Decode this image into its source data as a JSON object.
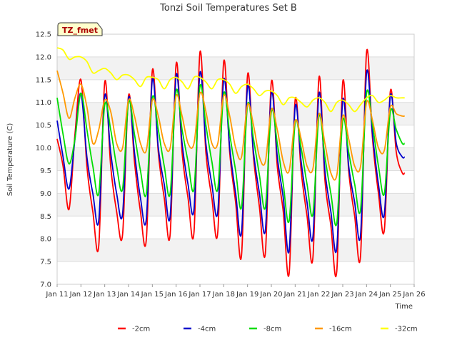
{
  "chart_data": {
    "type": "line",
    "title": "Tonzi Soil Temperatures Set B",
    "xlabel": "Time",
    "ylabel": "Soil Temperature (C)",
    "ylim": [
      7.0,
      12.5
    ],
    "xlim": [
      11,
      26
    ],
    "x_ticks": [
      {
        "pos": 11,
        "label": "Jan 11"
      },
      {
        "pos": 12,
        "label": "Jan 12"
      },
      {
        "pos": 13,
        "label": "Jan 13"
      },
      {
        "pos": 14,
        "label": "Jan 14"
      },
      {
        "pos": 15,
        "label": "Jan 15"
      },
      {
        "pos": 16,
        "label": "Jan 16"
      },
      {
        "pos": 17,
        "label": "Jan 17"
      },
      {
        "pos": 18,
        "label": "Jan 18"
      },
      {
        "pos": 19,
        "label": "Jan 19"
      },
      {
        "pos": 20,
        "label": "Jan 20"
      },
      {
        "pos": 21,
        "label": "Jan 21"
      },
      {
        "pos": 22,
        "label": "Jan 22"
      },
      {
        "pos": 23,
        "label": "Jan 23"
      },
      {
        "pos": 24,
        "label": "Jan 24"
      },
      {
        "pos": 25,
        "label": "Jan 25"
      },
      {
        "pos": 26,
        "label": "Jan 26"
      }
    ],
    "y_ticks": [
      "7.0",
      "7.5",
      "8.0",
      "8.5",
      "9.0",
      "9.5",
      "10.0",
      "10.5",
      "11.0",
      "11.5",
      "12.0",
      "12.5"
    ],
    "grid": true,
    "legend_position": "bottom",
    "annotation": "TZ_fmet",
    "series": [
      {
        "name": "-2cm",
        "color": "#ff0000",
        "x": [
          11.0,
          11.25,
          11.5,
          11.75,
          12.0,
          12.25,
          12.5,
          12.75,
          13.0,
          13.25,
          13.5,
          13.75,
          14.0,
          14.25,
          14.5,
          14.75,
          15.0,
          15.25,
          15.5,
          15.75,
          16.0,
          16.25,
          16.5,
          16.75,
          17.0,
          17.25,
          17.5,
          17.75,
          18.0,
          18.25,
          18.5,
          18.75,
          19.0,
          19.25,
          19.5,
          19.75,
          20.0,
          20.25,
          20.5,
          20.75,
          21.0,
          21.25,
          21.5,
          21.75,
          22.0,
          22.25,
          22.5,
          22.75,
          23.0,
          23.25,
          23.5,
          23.75,
          24.0,
          24.25,
          24.5,
          24.75,
          25.0,
          25.25,
          25.5,
          25.6
        ],
        "y": [
          10.2,
          9.6,
          8.65,
          10.3,
          11.5,
          9.6,
          8.6,
          7.85,
          11.45,
          9.6,
          8.6,
          8.1,
          11.15,
          9.7,
          8.6,
          8.0,
          11.7,
          9.9,
          8.9,
          8.1,
          11.85,
          9.9,
          8.9,
          8.15,
          12.1,
          9.9,
          8.9,
          8.15,
          11.9,
          9.9,
          8.8,
          7.65,
          11.6,
          9.8,
          8.7,
          7.7,
          11.45,
          9.6,
          8.6,
          7.25,
          11.05,
          9.5,
          8.5,
          7.6,
          11.55,
          9.3,
          8.3,
          7.3,
          11.45,
          9.5,
          8.5,
          7.65,
          12.1,
          10.2,
          9.0,
          8.2,
          11.25,
          9.9,
          9.45,
          9.45
        ]
      },
      {
        "name": "-4cm",
        "color": "#0000cc",
        "x": [
          11.0,
          11.25,
          11.5,
          11.75,
          12.0,
          12.25,
          12.5,
          12.75,
          13.0,
          13.25,
          13.5,
          13.75,
          14.0,
          14.25,
          14.5,
          14.75,
          15.0,
          15.25,
          15.5,
          15.75,
          16.0,
          16.25,
          16.5,
          16.75,
          17.0,
          17.25,
          17.5,
          17.75,
          18.0,
          18.25,
          18.5,
          18.75,
          19.0,
          19.25,
          19.5,
          19.75,
          20.0,
          20.25,
          20.5,
          20.75,
          21.0,
          21.25,
          21.5,
          21.75,
          22.0,
          22.25,
          22.5,
          22.75,
          23.0,
          23.25,
          23.5,
          23.75,
          24.0,
          24.25,
          24.5,
          24.75,
          25.0,
          25.25,
          25.5,
          25.6
        ],
        "y": [
          10.6,
          9.8,
          9.1,
          10.2,
          11.2,
          9.8,
          9.0,
          8.4,
          11.15,
          9.9,
          9.0,
          8.55,
          11.1,
          9.9,
          8.9,
          8.45,
          11.5,
          10.0,
          9.2,
          8.5,
          11.6,
          10.1,
          9.2,
          8.65,
          11.65,
          10.1,
          9.2,
          8.6,
          11.5,
          10.0,
          9.0,
          8.15,
          11.35,
          9.9,
          9.0,
          8.2,
          11.2,
          9.8,
          8.9,
          7.75,
          10.9,
          9.7,
          8.8,
          8.05,
          11.2,
          9.5,
          8.6,
          7.8,
          11.05,
          9.6,
          8.8,
          8.1,
          11.65,
          10.3,
          9.2,
          8.55,
          11.15,
          10.1,
          9.8,
          9.8
        ]
      },
      {
        "name": "-8cm",
        "color": "#00dd00",
        "x": [
          11.0,
          11.25,
          11.5,
          11.75,
          12.0,
          12.25,
          12.5,
          12.75,
          13.0,
          13.25,
          13.5,
          13.75,
          14.0,
          14.25,
          14.5,
          14.75,
          15.0,
          15.25,
          15.5,
          15.75,
          16.0,
          16.25,
          16.5,
          16.75,
          17.0,
          17.25,
          17.5,
          17.75,
          18.0,
          18.25,
          18.5,
          18.75,
          19.0,
          19.25,
          19.5,
          19.75,
          20.0,
          20.25,
          20.5,
          20.75,
          21.0,
          21.25,
          21.5,
          21.75,
          22.0,
          22.25,
          22.5,
          22.75,
          23.0,
          23.25,
          23.5,
          23.75,
          24.0,
          24.25,
          24.5,
          24.75,
          25.0,
          25.25,
          25.5,
          25.6
        ],
        "y": [
          11.1,
          10.3,
          9.65,
          10.2,
          11.2,
          10.4,
          9.6,
          9.0,
          10.95,
          10.4,
          9.6,
          9.1,
          11.0,
          10.3,
          9.5,
          9.0,
          11.1,
          10.4,
          9.6,
          9.0,
          11.25,
          10.4,
          9.7,
          9.1,
          11.35,
          10.5,
          9.7,
          9.1,
          11.2,
          10.3,
          9.5,
          8.7,
          10.95,
          10.2,
          9.4,
          8.7,
          10.8,
          10.1,
          9.2,
          8.4,
          10.55,
          10.0,
          9.2,
          8.55,
          10.7,
          9.8,
          9.0,
          8.35,
          10.6,
          9.9,
          9.2,
          8.65,
          11.2,
          10.5,
          9.6,
          9.0,
          10.8,
          10.4,
          10.1,
          10.1
        ]
      },
      {
        "name": "-16cm",
        "color": "#ff9900",
        "x": [
          11.0,
          11.25,
          11.5,
          11.75,
          12.0,
          12.25,
          12.5,
          12.75,
          13.0,
          13.25,
          13.5,
          13.75,
          14.0,
          14.25,
          14.5,
          14.75,
          15.0,
          15.25,
          15.5,
          15.75,
          16.0,
          16.25,
          16.5,
          16.75,
          17.0,
          17.25,
          17.5,
          17.75,
          18.0,
          18.25,
          18.5,
          18.75,
          19.0,
          19.25,
          19.5,
          19.75,
          20.0,
          20.25,
          20.5,
          20.75,
          21.0,
          21.25,
          21.5,
          21.75,
          22.0,
          22.25,
          22.5,
          22.75,
          23.0,
          23.25,
          23.5,
          23.75,
          24.0,
          24.25,
          24.5,
          24.75,
          25.0,
          25.25,
          25.5,
          25.6
        ],
        "y": [
          11.7,
          11.2,
          10.65,
          11.1,
          11.4,
          10.9,
          10.1,
          10.4,
          11.05,
          10.8,
          10.1,
          10.0,
          11.05,
          10.7,
          10.1,
          9.95,
          11.05,
          10.7,
          10.1,
          10.0,
          11.15,
          10.7,
          10.1,
          10.1,
          11.2,
          10.8,
          10.1,
          10.1,
          11.15,
          10.7,
          10.0,
          9.8,
          10.95,
          10.5,
          9.8,
          9.7,
          10.85,
          10.4,
          9.7,
          9.5,
          10.6,
          10.2,
          9.6,
          9.55,
          10.75,
          10.1,
          9.45,
          9.4,
          10.7,
          10.2,
          9.6,
          9.6,
          11.0,
          10.6,
          10.0,
          9.95,
          10.9,
          10.75,
          10.7,
          10.7
        ]
      },
      {
        "name": "-32cm",
        "color": "#ffff00",
        "x": [
          11.0,
          11.25,
          11.5,
          11.75,
          12.0,
          12.25,
          12.5,
          12.75,
          13.0,
          13.25,
          13.5,
          13.75,
          14.0,
          14.25,
          14.5,
          14.75,
          15.0,
          15.25,
          15.5,
          15.75,
          16.0,
          16.25,
          16.5,
          16.75,
          17.0,
          17.25,
          17.5,
          17.75,
          18.0,
          18.25,
          18.5,
          18.75,
          19.0,
          19.25,
          19.5,
          19.75,
          20.0,
          20.25,
          20.5,
          20.75,
          21.0,
          21.25,
          21.5,
          21.75,
          22.0,
          22.25,
          22.5,
          22.75,
          23.0,
          23.25,
          23.5,
          23.75,
          24.0,
          24.25,
          24.5,
          24.75,
          25.0,
          25.25,
          25.5,
          25.6
        ],
        "y": [
          12.2,
          12.15,
          11.95,
          12.0,
          12.0,
          11.9,
          11.65,
          11.7,
          11.75,
          11.65,
          11.5,
          11.6,
          11.6,
          11.5,
          11.35,
          11.55,
          11.55,
          11.5,
          11.3,
          11.5,
          11.55,
          11.45,
          11.3,
          11.55,
          11.55,
          11.45,
          11.3,
          11.5,
          11.5,
          11.4,
          11.2,
          11.35,
          11.4,
          11.3,
          11.15,
          11.25,
          11.25,
          11.15,
          10.95,
          11.1,
          11.1,
          11.0,
          10.9,
          11.05,
          11.1,
          11.0,
          10.8,
          11.0,
          11.05,
          10.95,
          10.8,
          10.95,
          11.1,
          11.15,
          11.0,
          11.05,
          11.15,
          11.1,
          11.1,
          11.1
        ]
      }
    ]
  }
}
